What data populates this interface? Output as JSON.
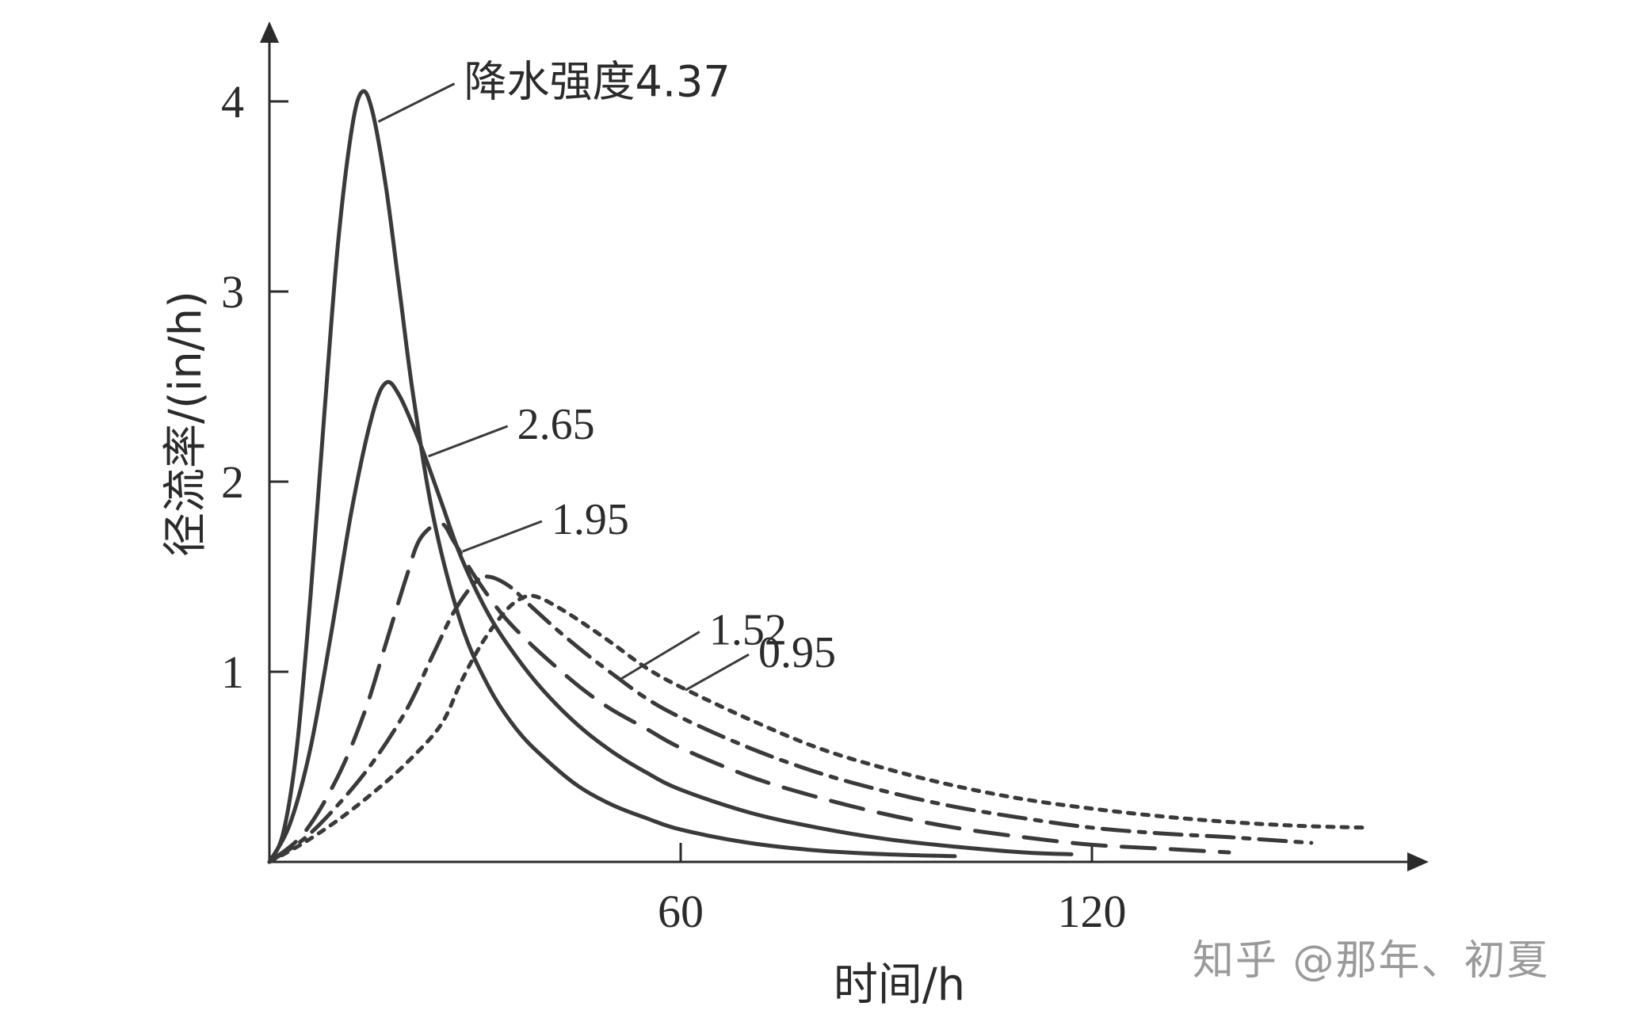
{
  "chart_data": {
    "type": "line",
    "title": "",
    "xlabel": "时间/h",
    "ylabel": "径流率/(in/h)",
    "xlim": [
      0,
      170
    ],
    "ylim": [
      0,
      4.3
    ],
    "xticks": [
      60,
      120
    ],
    "yticks": [
      1,
      2,
      3,
      4
    ],
    "grid": false,
    "legend": "inline labels",
    "series_label_prefix": "降水强度",
    "series": [
      {
        "name": "4.37",
        "style": "solid",
        "peak_x": 13.5,
        "peak_y": 4.05,
        "x": [
          0,
          2,
          4,
          6,
          8,
          10,
          12,
          13.5,
          15,
          17,
          19,
          21,
          24,
          28,
          32,
          36,
          40,
          45,
          50,
          55,
          60,
          70,
          80,
          90,
          100
        ],
        "y": [
          0,
          0.15,
          0.6,
          1.4,
          2.35,
          3.25,
          3.85,
          4.05,
          3.95,
          3.55,
          3.0,
          2.45,
          1.8,
          1.25,
          0.92,
          0.7,
          0.55,
          0.4,
          0.3,
          0.23,
          0.17,
          0.1,
          0.06,
          0.04,
          0.03
        ]
      },
      {
        "name": "2.65",
        "style": "solid",
        "peak_x": 17,
        "peak_y": 2.52,
        "x": [
          0,
          3,
          6,
          9,
          12,
          15,
          17,
          19,
          22,
          25,
          28,
          32,
          36,
          40,
          45,
          50,
          55,
          60,
          70,
          80,
          90,
          100,
          110,
          117
        ],
        "y": [
          0,
          0.2,
          0.6,
          1.2,
          1.85,
          2.35,
          2.52,
          2.45,
          2.2,
          1.9,
          1.6,
          1.3,
          1.08,
          0.9,
          0.72,
          0.58,
          0.47,
          0.38,
          0.26,
          0.18,
          0.12,
          0.08,
          0.05,
          0.04
        ]
      },
      {
        "name": "1.95",
        "style": "long-dash",
        "peak_x": 25,
        "peak_y": 1.78,
        "x": [
          0,
          5,
          10,
          14,
          17,
          20,
          22,
          25,
          27,
          30,
          34,
          38,
          42,
          46,
          50,
          55,
          60,
          70,
          80,
          90,
          100,
          110,
          120,
          130,
          140
        ],
        "y": [
          0,
          0.15,
          0.45,
          0.8,
          1.15,
          1.5,
          1.7,
          1.78,
          1.68,
          1.5,
          1.3,
          1.15,
          1.02,
          0.9,
          0.8,
          0.7,
          0.6,
          0.45,
          0.34,
          0.25,
          0.18,
          0.13,
          0.09,
          0.07,
          0.05
        ]
      },
      {
        "name": "1.52",
        "style": "dash-dot",
        "peak_x": 32,
        "peak_y": 1.5,
        "x": [
          0,
          5,
          10,
          15,
          20,
          24,
          27,
          30,
          32,
          35,
          38,
          42,
          46,
          50,
          55,
          60,
          70,
          80,
          90,
          100,
          110,
          120,
          130,
          140,
          152
        ],
        "y": [
          0,
          0.12,
          0.3,
          0.52,
          0.8,
          1.1,
          1.32,
          1.47,
          1.5,
          1.45,
          1.35,
          1.22,
          1.1,
          0.99,
          0.86,
          0.76,
          0.6,
          0.47,
          0.37,
          0.29,
          0.23,
          0.18,
          0.15,
          0.13,
          0.1
        ]
      },
      {
        "name": "0.95",
        "style": "dotted",
        "peak_x": 38,
        "peak_y": 1.4,
        "x": [
          0,
          5,
          10,
          15,
          20,
          25,
          28,
          31,
          34,
          36,
          38,
          40,
          43,
          46,
          50,
          55,
          60,
          70,
          80,
          90,
          100,
          110,
          120,
          130,
          140,
          150,
          160
        ],
        "y": [
          0,
          0.1,
          0.22,
          0.36,
          0.52,
          0.72,
          0.95,
          1.15,
          1.3,
          1.37,
          1.4,
          1.38,
          1.32,
          1.25,
          1.15,
          1.02,
          0.92,
          0.75,
          0.6,
          0.49,
          0.4,
          0.33,
          0.28,
          0.24,
          0.21,
          0.19,
          0.18
        ]
      }
    ]
  },
  "watermark": "知乎 @那年、初夏"
}
